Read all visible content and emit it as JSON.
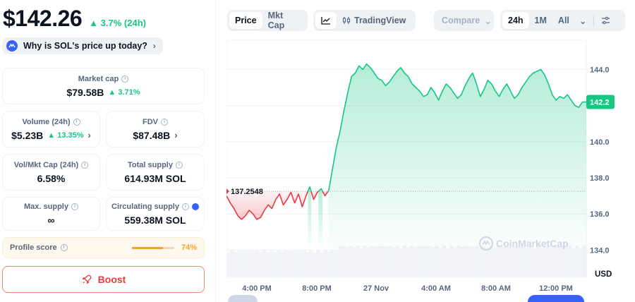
{
  "price": {
    "value": "$142.26",
    "change": "3.7% (24h)",
    "why_label": "Why is SOL's price up today?"
  },
  "stats": {
    "market_cap": {
      "label": "Market cap",
      "value": "$79.58B",
      "change": "3.71%"
    },
    "volume": {
      "label": "Volume (24h)",
      "value": "$5.23B",
      "change": "13.35%"
    },
    "fdv": {
      "label": "FDV",
      "value": "$87.48B"
    },
    "vol_mkt": {
      "label": "Vol/Mkt Cap (24h)",
      "value": "6.58%"
    },
    "total_supply": {
      "label": "Total supply",
      "value": "614.93M SOL"
    },
    "max_supply": {
      "label": "Max. supply",
      "value": "∞"
    },
    "circ_supply": {
      "label": "Circulating supply",
      "value": "559.38M SOL"
    }
  },
  "profile": {
    "label": "Profile score",
    "value": "74%",
    "fraction": 0.74
  },
  "boost_label": "Boost",
  "toolbar": {
    "price_tab": "Price",
    "mktcap_tab": "Mkt Cap",
    "tradingview": "TradingView",
    "compare": "Compare",
    "ranges": [
      "24h",
      "1M",
      "All"
    ]
  },
  "colors": {
    "accent": "#3861fb",
    "up": "#16c784",
    "down": "#ea3943"
  },
  "chart_data": {
    "type": "line",
    "y_ticks": [
      "144.0",
      "142.0",
      "140.0",
      "138.0",
      "136.0",
      "134.0"
    ],
    "ylim": [
      133.0,
      145.5
    ],
    "x_ticks": [
      "4:00 PM",
      "8:00 PM",
      "27 Nov",
      "4:00 AM",
      "8:00 AM",
      "12:00 PM"
    ],
    "reference_value": "137.2548",
    "reference": 137.2548,
    "current_value": "142.2",
    "current": 142.2,
    "ylabel": "USD",
    "watermark": "CoinMarketCap",
    "series": [
      {
        "values": [
          137.0,
          136.6,
          136.3,
          135.9,
          135.7,
          135.9,
          136.2,
          136.0,
          135.7,
          135.8,
          136.2,
          136.5,
          136.3,
          136.8,
          137.1,
          136.5,
          136.8,
          137.2,
          136.6,
          137.1,
          136.4,
          137.0,
          137.5,
          136.8,
          137.2,
          137.4,
          137.0,
          137.3,
          138.5,
          139.7,
          140.6,
          141.7,
          142.7,
          143.6,
          143.8,
          144.2,
          144.0,
          144.3,
          144.1,
          143.8,
          143.5,
          143.4,
          143.1,
          143.3,
          143.6,
          143.9,
          144.1,
          143.8,
          143.6,
          143.2,
          143.0,
          142.8,
          142.5,
          142.6,
          143.0,
          142.7,
          142.3,
          142.8,
          143.2,
          143.0,
          142.7,
          142.4,
          142.6,
          143.1,
          143.5,
          143.8,
          143.2,
          142.5,
          142.9,
          143.4,
          143.2,
          142.8,
          142.5,
          142.9,
          143.2,
          142.8,
          142.4,
          142.6,
          143.0,
          143.3,
          143.6,
          143.8,
          143.9,
          144.0,
          143.7,
          143.2,
          142.6,
          142.3,
          142.5,
          142.4,
          142.6,
          142.3,
          142.0,
          141.9,
          142.2,
          142.2
        ]
      }
    ]
  }
}
